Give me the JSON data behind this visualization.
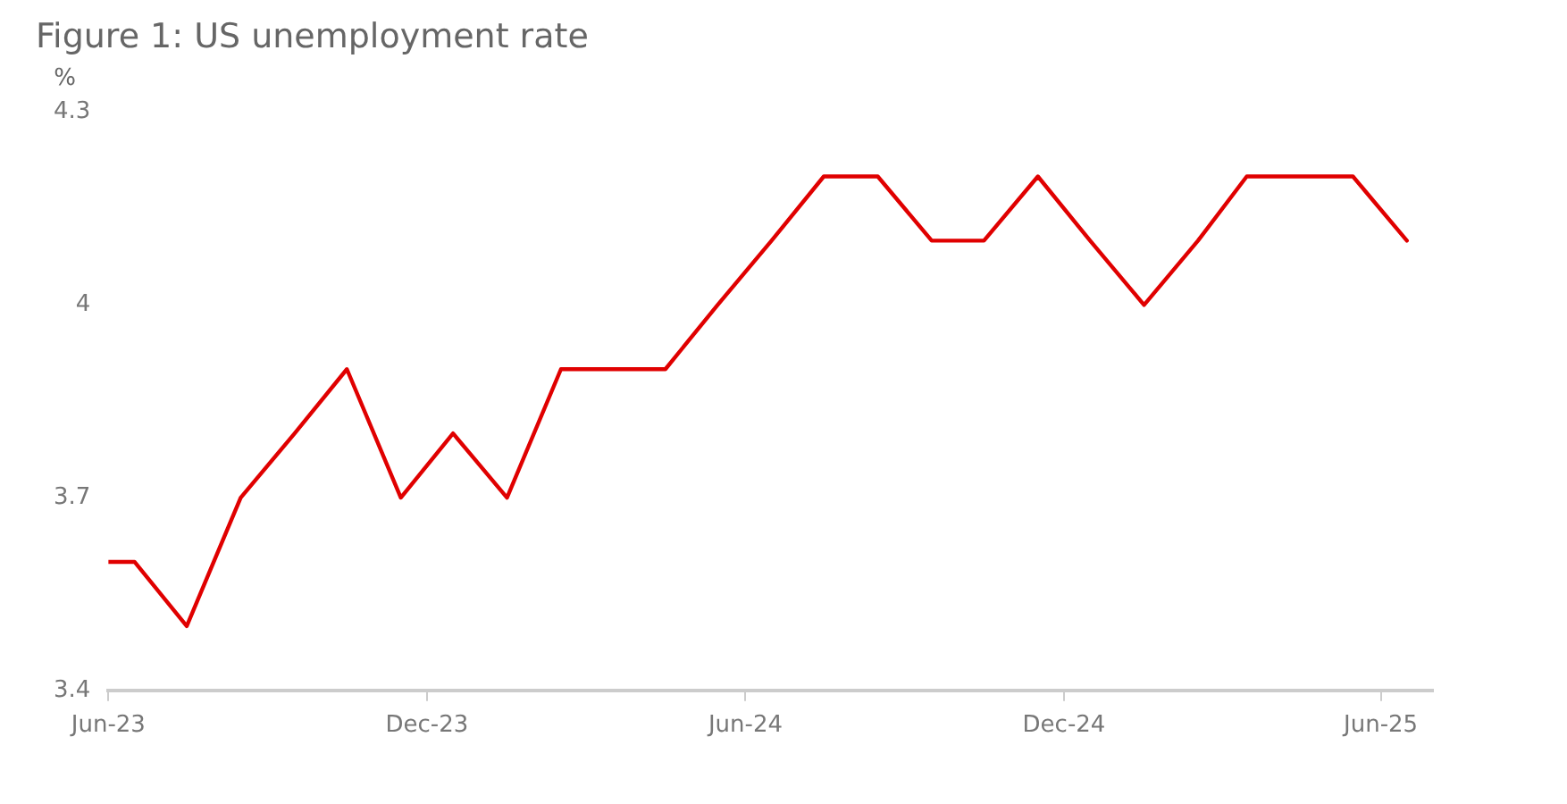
{
  "chart_data": {
    "type": "line",
    "title": "Figure 1: US unemployment rate",
    "ylabel": "%",
    "x": [
      "2023-06-01",
      "2023-06-16",
      "2023-07-16",
      "2023-08-16",
      "2023-09-16",
      "2023-10-16",
      "2023-11-16",
      "2023-12-16",
      "2024-01-16",
      "2024-02-16",
      "2024-03-16",
      "2024-04-16",
      "2024-05-16",
      "2024-06-16",
      "2024-07-16",
      "2024-08-16",
      "2024-09-16",
      "2024-10-16",
      "2024-11-16",
      "2024-12-16",
      "2025-01-16",
      "2025-02-16",
      "2025-03-16",
      "2025-04-16",
      "2025-05-16",
      "2025-06-16"
    ],
    "series": [
      {
        "color": "#e00000",
        "values": [
          3.6,
          3.6,
          3.5,
          3.7,
          3.8,
          3.9,
          3.7,
          3.8,
          3.7,
          3.9,
          3.9,
          3.9,
          4.0,
          4.1,
          4.2,
          4.2,
          4.1,
          4.1,
          4.2,
          4.1,
          4.0,
          4.1,
          4.2,
          4.2,
          4.2,
          4.1
        ]
      }
    ],
    "xlim": [
      "2023-06-01",
      "2025-07-01"
    ],
    "xticks": [
      {
        "value": "2023-06-01",
        "label": "Jun-23"
      },
      {
        "value": "2023-12-01",
        "label": "Dec-23"
      },
      {
        "value": "2024-06-01",
        "label": "Jun-24"
      },
      {
        "value": "2024-12-01",
        "label": "Dec-24"
      },
      {
        "value": "2025-06-01",
        "label": "Jun-25"
      }
    ],
    "ylim": [
      3.4,
      4.3
    ],
    "yticks": [
      3.4,
      3.7,
      4,
      4.3
    ],
    "grid": false,
    "legend": false,
    "marker": "none",
    "line_style": "solid"
  }
}
